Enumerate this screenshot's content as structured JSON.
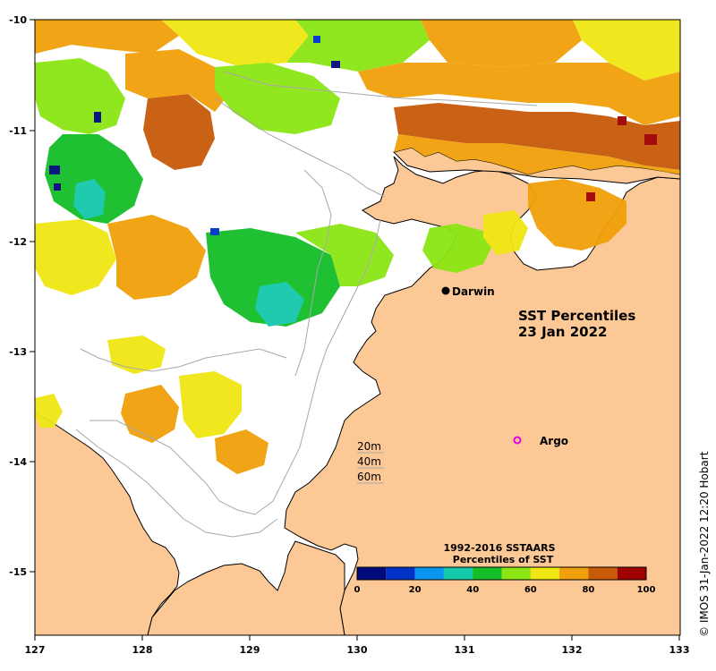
{
  "map": {
    "title_line1": "SST Percentiles",
    "title_line2": "23 Jan 2022",
    "lon_ticks": [
      "127",
      "128",
      "129",
      "130",
      "131",
      "132",
      "133"
    ],
    "lat_ticks": [
      "-10",
      "-11",
      "-12",
      "-13",
      "-14",
      "-15"
    ],
    "lon_range": [
      127,
      133
    ],
    "lat_range": [
      -15.6,
      -10
    ],
    "places": [
      {
        "name": "Darwin",
        "lon": 130.84,
        "lat": -12.46,
        "marker": "filled-circle"
      },
      {
        "name": "Argo",
        "lon": 131.52,
        "lat": -13.81,
        "marker": "open-circle"
      }
    ],
    "depth_contours": [
      "20m",
      "40m",
      "60m"
    ],
    "colorbar": {
      "title_line1": "1992-2016 SSTAARS",
      "title_line2": "Percentiles of SST",
      "ticks": [
        "0",
        "20",
        "40",
        "60",
        "80",
        "100"
      ],
      "colors": [
        "#000a7a",
        "#0032c8",
        "#0a96f0",
        "#14c8aa",
        "#14be28",
        "#8ce614",
        "#f0e614",
        "#f0a00a",
        "#c85a0a",
        "#a00000"
      ]
    },
    "credit": "© IMOS 31-Jan-2022 12:20 Hobart",
    "colors": {
      "land": "#fcc896",
      "sea": "#ffffff",
      "coast": "#000000",
      "contour": "#a8a8a8",
      "argo": "#e600e6"
    }
  }
}
